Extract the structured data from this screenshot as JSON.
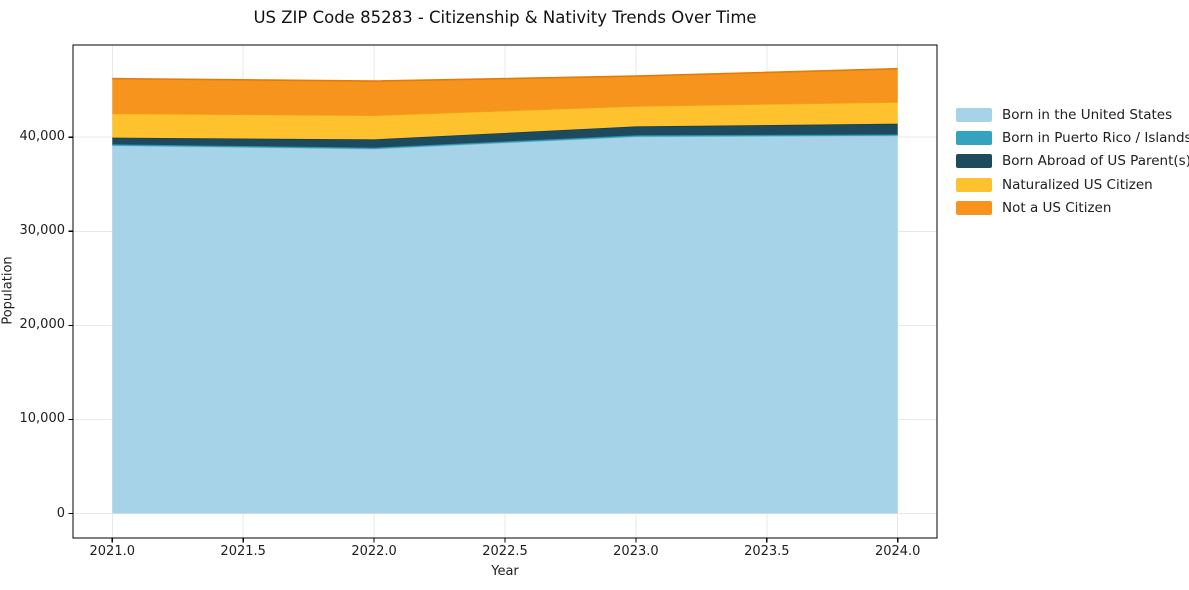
{
  "title": "US ZIP Code 85283 - Citizenship & Nativity Trends Over Time",
  "chart_data": {
    "type": "area",
    "stacked": true,
    "title": "US ZIP Code 85283 - Citizenship & Nativity Trends Over Time",
    "xlabel": "Year",
    "ylabel": "Population",
    "x": [
      2021,
      2022,
      2023,
      2024
    ],
    "series": [
      {
        "name": "Born in the United States",
        "color": "#a7d3e8",
        "edge_color": "#8fc3dc",
        "values": [
          39100,
          38750,
          40050,
          40150
        ]
      },
      {
        "name": "Born in Puerto Rico / Islands",
        "color": "#35a2be",
        "edge_color": "#2b8aa3",
        "values": [
          150,
          140,
          150,
          150
        ]
      },
      {
        "name": "Born Abroad of US Parent(s)",
        "color": "#1e4a5e",
        "edge_color": "#16394a",
        "values": [
          710,
          880,
          950,
          1140
        ]
      },
      {
        "name": "Naturalized US Citizen",
        "color": "#fdc22e",
        "edge_color": "#eca713",
        "values": [
          2550,
          2550,
          2160,
          2290
        ]
      },
      {
        "name": "Not a US Citizen",
        "color": "#f7941e",
        "edge_color": "#e07c0a",
        "values": [
          3720,
          3640,
          3180,
          3550
        ]
      }
    ],
    "totals": [
      46230,
      45960,
      46490,
      47280
    ],
    "x_tick_labels": [
      "2021.0",
      "2021.5",
      "2022.0",
      "2022.5",
      "2023.0",
      "2023.5",
      "2024.0"
    ],
    "y_tick_labels": [
      "0",
      "10,000",
      "20,000",
      "30,000",
      "40,000"
    ],
    "xlim": [
      2020.85,
      2024.15
    ],
    "ylim": [
      -2600,
      49800
    ],
    "grid": true,
    "grid_color": "#e8e8e8",
    "axis_color": "#000000",
    "legend_position": "right"
  }
}
